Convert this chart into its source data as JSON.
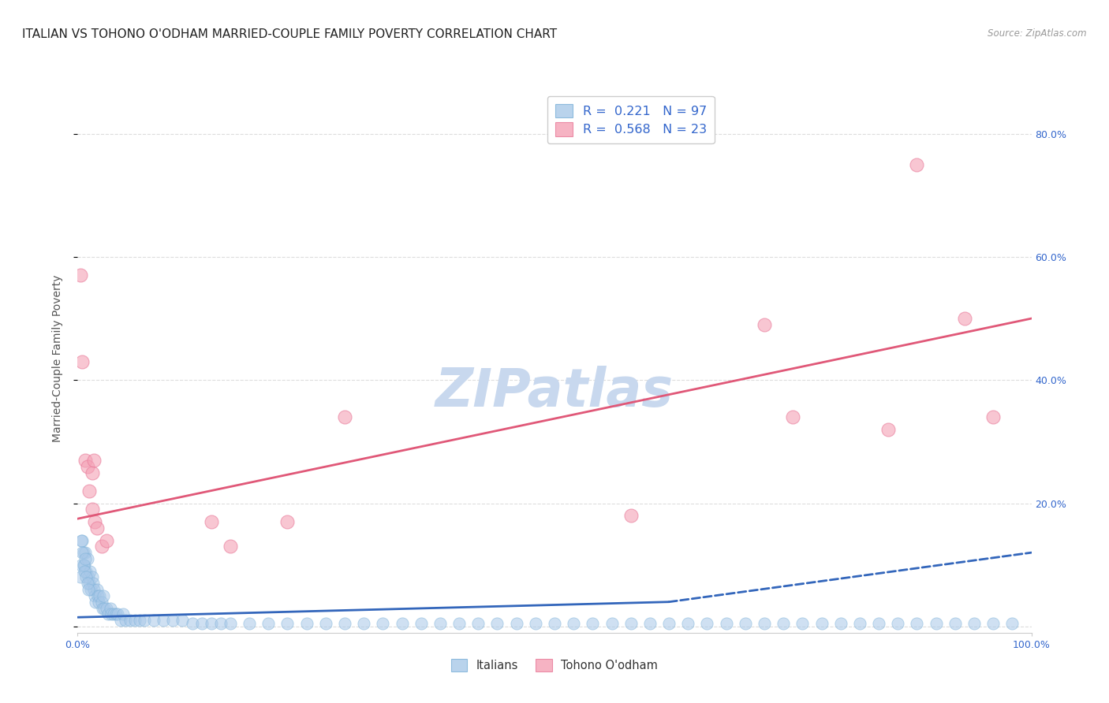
{
  "title": "ITALIAN VS TOHONO O'ODHAM MARRIED-COUPLE FAMILY POVERTY CORRELATION CHART",
  "source": "Source: ZipAtlas.com",
  "ylabel": "Married-Couple Family Poverty",
  "yticks": [
    0.0,
    0.2,
    0.4,
    0.6,
    0.8
  ],
  "ytick_labels": [
    "",
    "20.0%",
    "40.0%",
    "60.0%",
    "80.0%"
  ],
  "xlim": [
    0.0,
    1.0
  ],
  "ylim": [
    -0.01,
    0.88
  ],
  "watermark": "ZIPatlas",
  "legend_R_blue": "0.221",
  "legend_N_blue": "97",
  "legend_R_pink": "0.568",
  "legend_N_pink": "23",
  "legend_label_blue": "Italians",
  "legend_label_pink": "Tohono O'odham",
  "blue_color": "#a8c8e8",
  "blue_edge_color": "#7ab0d8",
  "pink_color": "#f4a0b5",
  "pink_edge_color": "#e87898",
  "blue_line_color": "#3366bb",
  "pink_line_color": "#e05878",
  "blue_scatter_x": [
    0.003,
    0.004,
    0.005,
    0.006,
    0.007,
    0.008,
    0.009,
    0.01,
    0.011,
    0.012,
    0.013,
    0.014,
    0.015,
    0.016,
    0.017,
    0.018,
    0.019,
    0.02,
    0.021,
    0.022,
    0.023,
    0.025,
    0.026,
    0.027,
    0.028,
    0.03,
    0.032,
    0.034,
    0.035,
    0.038,
    0.04,
    0.042,
    0.045,
    0.048,
    0.05,
    0.055,
    0.06,
    0.065,
    0.07,
    0.08,
    0.09,
    0.1,
    0.11,
    0.12,
    0.13,
    0.14,
    0.15,
    0.16,
    0.18,
    0.2,
    0.22,
    0.24,
    0.26,
    0.28,
    0.3,
    0.32,
    0.34,
    0.36,
    0.38,
    0.4,
    0.42,
    0.44,
    0.46,
    0.48,
    0.5,
    0.52,
    0.54,
    0.56,
    0.58,
    0.6,
    0.62,
    0.64,
    0.66,
    0.68,
    0.7,
    0.72,
    0.74,
    0.76,
    0.78,
    0.8,
    0.82,
    0.84,
    0.86,
    0.88,
    0.9,
    0.92,
    0.94,
    0.96,
    0.98,
    0.004,
    0.005,
    0.006,
    0.007,
    0.008,
    0.009,
    0.01,
    0.011
  ],
  "blue_scatter_y": [
    0.08,
    0.1,
    0.14,
    0.12,
    0.1,
    0.12,
    0.09,
    0.11,
    0.08,
    0.07,
    0.09,
    0.06,
    0.08,
    0.07,
    0.06,
    0.05,
    0.04,
    0.06,
    0.05,
    0.04,
    0.05,
    0.04,
    0.03,
    0.05,
    0.03,
    0.03,
    0.02,
    0.03,
    0.02,
    0.02,
    0.02,
    0.02,
    0.01,
    0.02,
    0.01,
    0.01,
    0.01,
    0.01,
    0.01,
    0.01,
    0.01,
    0.01,
    0.01,
    0.005,
    0.005,
    0.005,
    0.005,
    0.005,
    0.005,
    0.005,
    0.005,
    0.005,
    0.005,
    0.005,
    0.005,
    0.005,
    0.005,
    0.005,
    0.005,
    0.005,
    0.005,
    0.005,
    0.005,
    0.005,
    0.005,
    0.005,
    0.005,
    0.005,
    0.005,
    0.005,
    0.005,
    0.005,
    0.005,
    0.005,
    0.005,
    0.005,
    0.005,
    0.005,
    0.005,
    0.005,
    0.005,
    0.005,
    0.005,
    0.005,
    0.005,
    0.005,
    0.005,
    0.005,
    0.005,
    0.14,
    0.12,
    0.1,
    0.09,
    0.11,
    0.08,
    0.07,
    0.06
  ],
  "pink_scatter_x": [
    0.003,
    0.005,
    0.008,
    0.01,
    0.012,
    0.015,
    0.018,
    0.02,
    0.025,
    0.03,
    0.14,
    0.16,
    0.22,
    0.28,
    0.58,
    0.72,
    0.75,
    0.85,
    0.88,
    0.93,
    0.96,
    0.015,
    0.017
  ],
  "pink_scatter_y": [
    0.57,
    0.43,
    0.27,
    0.26,
    0.22,
    0.19,
    0.17,
    0.16,
    0.13,
    0.14,
    0.17,
    0.13,
    0.17,
    0.34,
    0.18,
    0.49,
    0.34,
    0.32,
    0.75,
    0.5,
    0.34,
    0.25,
    0.27
  ],
  "blue_trend_start_x": 0.0,
  "blue_trend_start_y": 0.015,
  "blue_trend_end_x": 0.62,
  "blue_trend_end_y": 0.04,
  "blue_trend_dashed_start_x": 0.62,
  "blue_trend_dashed_start_y": 0.04,
  "blue_trend_dashed_end_x": 1.0,
  "blue_trend_dashed_end_y": 0.12,
  "pink_trend_start_x": 0.0,
  "pink_trend_start_y": 0.175,
  "pink_trend_end_x": 1.0,
  "pink_trend_end_y": 0.5,
  "background_color": "#ffffff",
  "grid_color": "#dddddd",
  "title_fontsize": 11,
  "axis_label_fontsize": 10,
  "tick_fontsize": 9,
  "watermark_fontsize": 48,
  "watermark_color": "#c8d8ee",
  "legend_text_color": "#3366cc",
  "source_color": "#999999"
}
